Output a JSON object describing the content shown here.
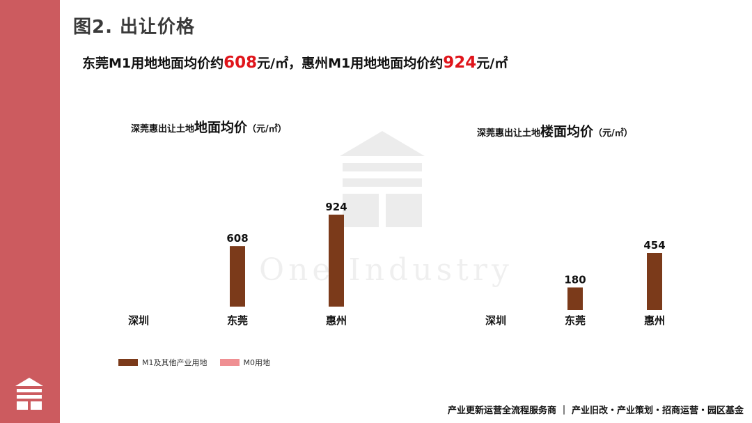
{
  "slide": {
    "title": "图2. 出让价格",
    "subtitle": {
      "part1": "东莞M1用地地面均价约",
      "value1": "608",
      "part2": "元/㎡，惠州M1用地地面均价约",
      "value2": "924",
      "part3": "元/㎡"
    },
    "watermark_text": "One Industry",
    "footer": "产业更新运营全流程服务商 ｜ 产业旧改・产业策划・招商运营・园区基金"
  },
  "legend": {
    "items": [
      {
        "label": "M1及其他产业用地",
        "color": "#7b3a1a"
      },
      {
        "label": "M0用地",
        "color": "#ef8f92"
      }
    ]
  },
  "chart_data": [
    {
      "type": "bar",
      "title_prefix": "深莞惠出让土地",
      "title_main": "地面均价",
      "title_unit": "（元/㎡）",
      "categories": [
        "深圳",
        "东莞",
        "惠州"
      ],
      "series": [
        {
          "name": "M1及其他产业用地",
          "values": [
            null,
            608,
            924
          ],
          "color": "#7b3a1a"
        }
      ],
      "ylim": [
        0,
        924
      ]
    },
    {
      "type": "bar",
      "title_prefix": "深莞惠出让土地",
      "title_main": "楼面均价",
      "title_unit": "（元/㎡）",
      "categories": [
        "深圳",
        "东莞",
        "惠州"
      ],
      "series": [
        {
          "name": "M1及其他产业用地",
          "values": [
            null,
            180,
            454
          ],
          "color": "#7b3a1a"
        }
      ],
      "ylim": [
        0,
        454
      ]
    }
  ]
}
